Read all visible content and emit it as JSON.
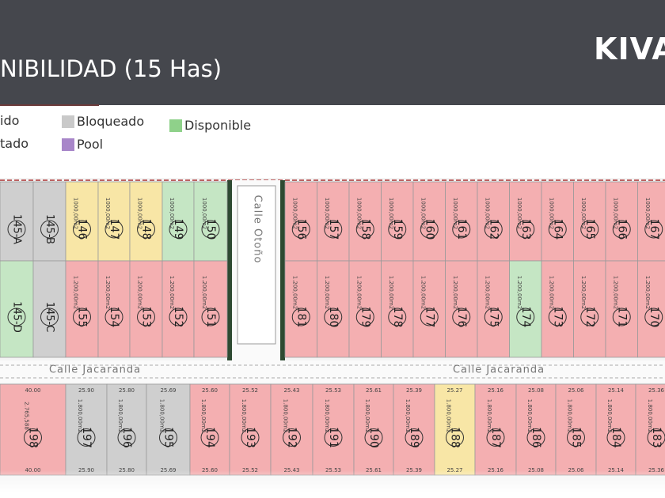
{
  "header": {
    "title": "NIBILIDAD (15 Has)",
    "logo": "KIVA"
  },
  "legend": [
    {
      "label": "ido"
    },
    {
      "label": "tado"
    },
    {
      "label": "Bloqueado",
      "color": "#c9c9c9"
    },
    {
      "label": "Pool",
      "color": "#a886c9"
    },
    {
      "label": "Disponible",
      "color": "#8fd18a"
    }
  ],
  "map": {
    "streets": [
      {
        "label": "Calle Otoño"
      },
      {
        "label": "Calle Jacaranda"
      },
      {
        "label": "Calle Jacaranda"
      }
    ],
    "blocks": [
      {
        "lots": [
          {
            "label": "145-A",
            "color": "#cfcfcf"
          },
          {
            "label": "145-B",
            "color": "#cfcfcf"
          },
          {
            "label": "146",
            "color": "#f8e6a6",
            "area": "1000,00m2"
          },
          {
            "label": "147",
            "color": "#f8e6a6",
            "area": "1000,00m2"
          },
          {
            "label": "148",
            "color": "#f8e6a6",
            "area": "1000,00m2"
          },
          {
            "label": "149",
            "color": "#c5e6c4",
            "area": "1000,00m2"
          },
          {
            "label": "150",
            "color": "#c5e6c4",
            "area": "1000,00m2"
          }
        ]
      },
      {
        "lots": [
          {
            "label": "145-D",
            "color": "#c5e6c4"
          },
          {
            "label": "145-C",
            "color": "#cfcfcf"
          },
          {
            "label": "155",
            "color": "#f4afb1",
            "area": "1.200,00m2"
          },
          {
            "label": "154",
            "color": "#f4afb1",
            "area": "1.200,00m2"
          },
          {
            "label": "153",
            "color": "#f4afb1",
            "area": "1.200,00m2"
          },
          {
            "label": "152",
            "color": "#f4afb1",
            "area": "1.200,00m2"
          },
          {
            "label": "151",
            "color": "#f4afb1",
            "area": "1.200,00m2"
          }
        ]
      },
      {
        "lots": [
          {
            "label": "156",
            "color": "#f4afb1",
            "area": "1000,00m2"
          },
          {
            "label": "157",
            "color": "#f4afb1",
            "area": "1000,00m2"
          },
          {
            "label": "158",
            "color": "#f4afb1",
            "area": "1000,00m2"
          },
          {
            "label": "159",
            "color": "#f4afb1",
            "area": "1000,00m2"
          },
          {
            "label": "160",
            "color": "#f4afb1",
            "area": "1000,00m2"
          },
          {
            "label": "161",
            "color": "#f4afb1",
            "area": "1000,00m2"
          },
          {
            "label": "162",
            "color": "#f4afb1",
            "area": "1000,00m2"
          },
          {
            "label": "163",
            "color": "#f4afb1",
            "area": "1000,00m2"
          },
          {
            "label": "164",
            "color": "#f4afb1",
            "area": "1000,00m2"
          },
          {
            "label": "165",
            "color": "#f4afb1",
            "area": "1000,00m2"
          },
          {
            "label": "166",
            "color": "#f4afb1",
            "area": "1000,00m2"
          },
          {
            "label": "167",
            "color": "#f4afb1",
            "area": "1000,00m2"
          }
        ]
      },
      {
        "lots": [
          {
            "label": "181",
            "color": "#f4afb1",
            "area": "1.200,00m2"
          },
          {
            "label": "180",
            "color": "#f4afb1",
            "area": "1.200,00m2"
          },
          {
            "label": "179",
            "color": "#f4afb1",
            "area": "1.200,00m2"
          },
          {
            "label": "178",
            "color": "#f4afb1",
            "area": "1.200,00m2"
          },
          {
            "label": "177",
            "color": "#f4afb1",
            "area": "1.200,00m2"
          },
          {
            "label": "176",
            "color": "#f4afb1",
            "area": "1.200,00m2"
          },
          {
            "label": "175",
            "color": "#f4afb1",
            "area": "1.200,00m2"
          },
          {
            "label": "174",
            "color": "#c5e6c4",
            "area": "1.200,00m2"
          },
          {
            "label": "173",
            "color": "#f4afb1",
            "area": "1.200,00m2"
          },
          {
            "label": "172",
            "color": "#f4afb1",
            "area": "1.200,00m2"
          },
          {
            "label": "171",
            "color": "#f4afb1",
            "area": "1.200,00m2"
          },
          {
            "label": "170",
            "color": "#f4afb1",
            "area": "1.200,00m2"
          }
        ]
      },
      {
        "lots": [
          {
            "label": "198",
            "color": "#f4afb1",
            "area": "2.765,588",
            "front": "40.00"
          },
          {
            "label": "197",
            "color": "#cfcfcf",
            "area": "1.800,00m2",
            "front": "25.90"
          },
          {
            "label": "196",
            "color": "#cfcfcf",
            "area": "1.800,00m2",
            "front": "25.80"
          },
          {
            "label": "195",
            "color": "#cfcfcf",
            "area": "1.800,00m2",
            "front": "25.69"
          },
          {
            "label": "194",
            "color": "#f4afb1",
            "area": "1.800,00m2",
            "front": "25.60"
          },
          {
            "label": "193",
            "color": "#f4afb1",
            "area": "1.800,00m2",
            "front": "25.52"
          },
          {
            "label": "192",
            "color": "#f4afb1",
            "area": "1.800,00m2",
            "front": "25.43"
          },
          {
            "label": "191",
            "color": "#f4afb1",
            "area": "1.800,00m2",
            "front": "25.53"
          },
          {
            "label": "190",
            "color": "#f4afb1",
            "area": "1.800,00m2",
            "front": "25.61"
          },
          {
            "label": "189",
            "color": "#f4afb1",
            "area": "1.800,00m2",
            "front": "25.39"
          },
          {
            "label": "188",
            "color": "#f8e6a6",
            "area": "1.800,00m2",
            "front": "25.27"
          },
          {
            "label": "187",
            "color": "#f4afb1",
            "area": "1.800,00m2",
            "front": "25.16"
          },
          {
            "label": "186",
            "color": "#f4afb1",
            "area": "1.800,00m2",
            "front": "25.08"
          },
          {
            "label": "185",
            "color": "#f4afb1",
            "area": "1.800,00m2",
            "front": "25.06"
          },
          {
            "label": "184",
            "color": "#f4afb1",
            "area": "1.800,00m2",
            "front": "25.14"
          },
          {
            "label": "183",
            "color": "#f4afb1",
            "area": "1.800,00m2",
            "front": "25.36"
          }
        ]
      }
    ]
  }
}
